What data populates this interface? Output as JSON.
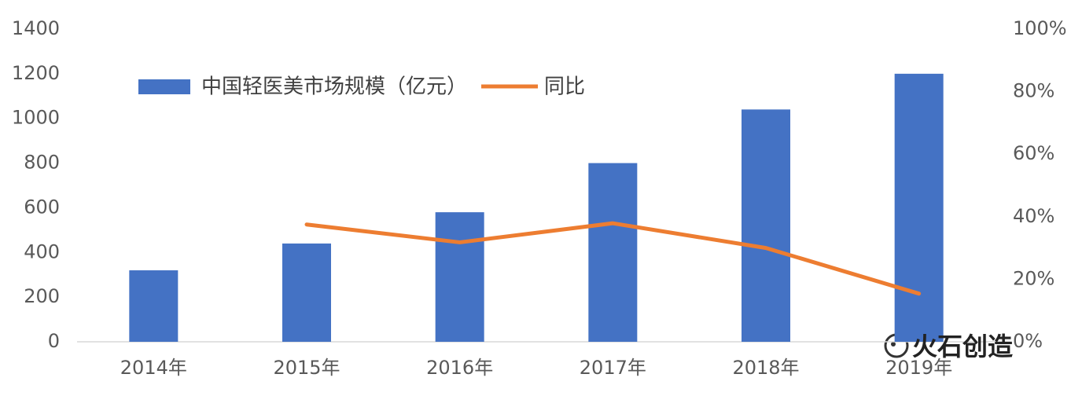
{
  "chart_data": {
    "type": "bar",
    "categories": [
      "2014年",
      "2015年",
      "2016年",
      "2017年",
      "2018年",
      "2019年"
    ],
    "series": [
      {
        "name": "中国轻医美市场规模（亿元）",
        "type": "bar",
        "color": "#4472c4",
        "values": [
          320,
          440,
          580,
          800,
          1040,
          1200
        ]
      },
      {
        "name": "同比",
        "type": "line",
        "axis": "y2",
        "color": "#ed7d31",
        "values": [
          null,
          37.5,
          31.8,
          37.9,
          30,
          15.4
        ]
      }
    ],
    "ylim": [
      0,
      1400
    ],
    "yticks": [
      0,
      200,
      400,
      600,
      800,
      1000,
      1200,
      1400
    ],
    "y2lim": [
      0,
      100
    ],
    "y2ticks": [
      {
        "value": 0,
        "label": "0%"
      },
      {
        "value": 20,
        "label": "20%"
      },
      {
        "value": 40,
        "label": "40%"
      },
      {
        "value": 60,
        "label": "60%"
      },
      {
        "value": 80,
        "label": "80%"
      },
      {
        "value": 100,
        "label": "100%"
      }
    ],
    "grid": false,
    "legend": "top-left",
    "watermark": "火石创造"
  }
}
